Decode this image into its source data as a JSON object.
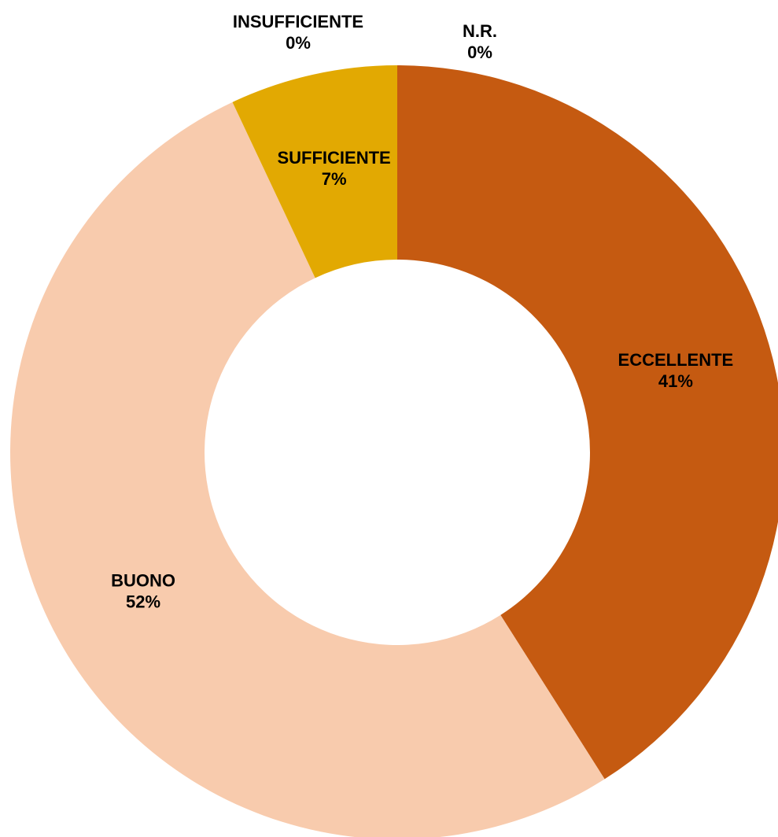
{
  "chart_data": {
    "type": "donut",
    "categories": [
      "ECCELLENTE",
      "BUONO",
      "SUFFICIENTE",
      "INSUFFICIENTE",
      "N.R."
    ],
    "values": [
      41,
      52,
      7,
      0,
      0
    ],
    "value_labels": [
      "41%",
      "52%",
      "7%",
      "0%",
      "0%"
    ],
    "colors": [
      "#c55a11",
      "#f8cbad",
      "#e2a902",
      "#a5a5a5",
      "#7f7f7f"
    ]
  }
}
